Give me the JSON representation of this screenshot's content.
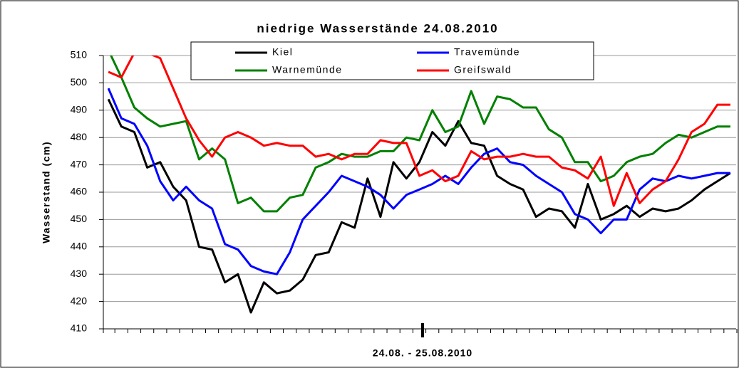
{
  "chart_data": {
    "type": "line",
    "title": "niedrige Wasserstände 24.08.2010",
    "xlabel": "24.08. - 25.08.2010",
    "ylabel": "Wasserstand (cm)",
    "ylim": [
      410,
      510
    ],
    "yticks": [
      410,
      420,
      430,
      440,
      450,
      460,
      470,
      480,
      490,
      500,
      510
    ],
    "grid": true,
    "legend": "top",
    "series": [
      {
        "name": "Kiel",
        "color": "#000000",
        "values": [
          494,
          484,
          482,
          469,
          471,
          462,
          457,
          440,
          439,
          427,
          430,
          416,
          427,
          423,
          424,
          428,
          437,
          438,
          449,
          447,
          465,
          451,
          471,
          465,
          471,
          482,
          477,
          486,
          478,
          477,
          466,
          463,
          461,
          451,
          454,
          453,
          447,
          463,
          450,
          452,
          455,
          451,
          454,
          453,
          454,
          457,
          461,
          464,
          467
        ]
      },
      {
        "name": "Travemünde",
        "color": "#0000ff",
        "values": [
          498,
          487,
          485,
          477,
          464,
          457,
          462,
          457,
          454,
          441,
          439,
          433,
          431,
          430,
          438,
          450,
          455,
          460,
          466,
          464,
          462,
          459,
          454,
          459,
          461,
          463,
          466,
          463,
          469,
          474,
          476,
          471,
          470,
          466,
          463,
          460,
          452,
          450,
          445,
          450,
          450,
          461,
          465,
          464,
          466,
          465,
          466,
          467,
          467
        ]
      },
      {
        "name": "Warnemünde",
        "color": "#008000",
        "values": [
          512,
          502,
          491,
          487,
          484,
          485,
          486,
          472,
          476,
          472,
          456,
          458,
          453,
          453,
          458,
          459,
          469,
          471,
          474,
          473,
          473,
          475,
          475,
          480,
          479,
          490,
          482,
          484,
          497,
          485,
          495,
          494,
          491,
          491,
          483,
          480,
          471,
          471,
          464,
          466,
          471,
          473,
          474,
          478,
          481,
          480,
          482,
          484,
          484
        ]
      },
      {
        "name": "Greifswald",
        "color": "#ff0000",
        "values": [
          504,
          502,
          511,
          511,
          509,
          498,
          487,
          479,
          473,
          480,
          482,
          480,
          477,
          478,
          477,
          477,
          473,
          474,
          472,
          474,
          474,
          479,
          478,
          478,
          466,
          468,
          464,
          466,
          475,
          472,
          473,
          473,
          474,
          473,
          473,
          469,
          468,
          465,
          473,
          455,
          467,
          456,
          461,
          464,
          472,
          482,
          485,
          492,
          492
        ]
      }
    ]
  }
}
